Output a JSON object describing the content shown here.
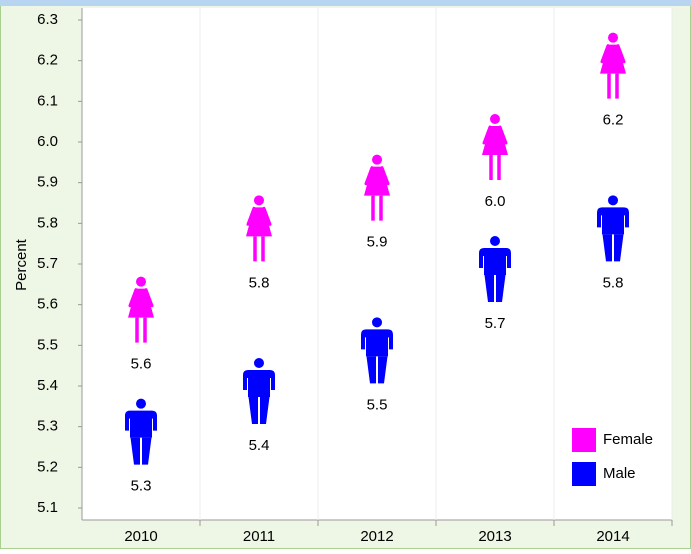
{
  "chart_data": {
    "type": "pictograph",
    "ylabel": "Percent",
    "categories": [
      "2010",
      "2011",
      "2012",
      "2013",
      "2014"
    ],
    "series": [
      {
        "name": "Female",
        "color": "#ff00ff",
        "values": [
          5.6,
          5.8,
          5.9,
          6,
          6.2
        ],
        "value_labels": [
          "5.6",
          "5.8",
          "5.9",
          "6.0",
          "6.2"
        ]
      },
      {
        "name": "Male",
        "color": "#0000ff",
        "values": [
          5.3,
          5.4,
          5.5,
          5.7,
          5.8
        ],
        "value_labels": [
          "5.3",
          "5.4",
          "5.5",
          "5.7",
          "5.8"
        ]
      }
    ],
    "ylim": [
      5.1,
      6.3
    ],
    "yticks": [
      5.1,
      5.2,
      5.3,
      5.4,
      5.5,
      5.6,
      5.7,
      5.8,
      5.9,
      {
        "value": 6,
        "label": "6.0"
      },
      6.1,
      6.2,
      6.3
    ],
    "legend": "lower right"
  }
}
